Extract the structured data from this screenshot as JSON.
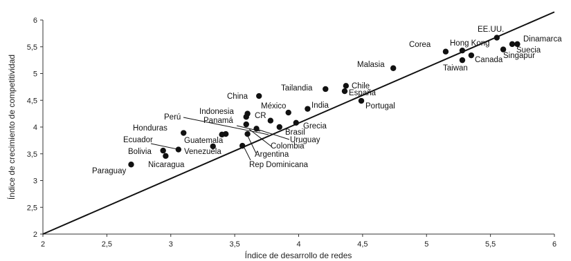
{
  "chart_data": {
    "type": "scatter",
    "title": "",
    "xlabel": "Índice de desarrollo de redes",
    "ylabel": "Índice de crecimiento de competitividad",
    "xlim": [
      2,
      6
    ],
    "ylim": [
      2,
      6
    ],
    "xticks": [
      {
        "value": 2,
        "label": "2"
      },
      {
        "value": 2.5,
        "label": "2,5"
      },
      {
        "value": 3,
        "label": "3"
      },
      {
        "value": 3.5,
        "label": "3,5"
      },
      {
        "value": 4,
        "label": "4"
      },
      {
        "value": 4.5,
        "label": "4,5"
      },
      {
        "value": 5,
        "label": "5"
      },
      {
        "value": 5.5,
        "label": "5,5"
      },
      {
        "value": 6,
        "label": "6"
      }
    ],
    "yticks": [
      {
        "value": 2,
        "label": "2"
      },
      {
        "value": 2.5,
        "label": "2,5"
      },
      {
        "value": 3,
        "label": "3"
      },
      {
        "value": 3.5,
        "label": "3,5"
      },
      {
        "value": 4,
        "label": "4"
      },
      {
        "value": 4.5,
        "label": "4,5"
      },
      {
        "value": 5,
        "label": "5"
      },
      {
        "value": 5.5,
        "label": "5,5"
      },
      {
        "value": 6,
        "label": "6"
      }
    ],
    "grid": false,
    "legend": "none",
    "trendline": {
      "x": [
        2,
        6
      ],
      "y": [
        2,
        6.15
      ]
    },
    "points": [
      {
        "name": "EE.UU.",
        "x": 5.55,
        "y": 5.67
      },
      {
        "name": "Dinamarca",
        "x": 5.71,
        "y": 5.55
      },
      {
        "name": "Suecia",
        "x": 5.67,
        "y": 5.55
      },
      {
        "name": "Singapur",
        "x": 5.6,
        "y": 5.45
      },
      {
        "name": "Hong Kong",
        "x": 5.28,
        "y": 5.43
      },
      {
        "name": "Corea",
        "x": 5.15,
        "y": 5.41
      },
      {
        "name": "Canada",
        "x": 5.35,
        "y": 5.34
      },
      {
        "name": "Taiwan",
        "x": 5.28,
        "y": 5.25
      },
      {
        "name": "Malasia",
        "x": 4.74,
        "y": 5.1
      },
      {
        "name": "Chile",
        "x": 4.37,
        "y": 4.77
      },
      {
        "name": "Tailandia",
        "x": 4.21,
        "y": 4.71
      },
      {
        "name": "España",
        "x": 4.36,
        "y": 4.67
      },
      {
        "name": "China",
        "x": 3.69,
        "y": 4.58
      },
      {
        "name": "Portugal",
        "x": 4.49,
        "y": 4.49
      },
      {
        "name": "India",
        "x": 4.07,
        "y": 4.34
      },
      {
        "name": "México",
        "x": 3.92,
        "y": 4.27
      },
      {
        "name": "Indonesia",
        "x": 3.6,
        "y": 4.25
      },
      {
        "name": "CR",
        "x": 3.59,
        "y": 4.19
      },
      {
        "name": "Panamá",
        "x": 3.59,
        "y": 4.05
      },
      {
        "name": "Brasil",
        "x": 3.78,
        "y": 4.12
      },
      {
        "name": "Grecia",
        "x": 3.98,
        "y": 4.08
      },
      {
        "name": "Perú",
        "x": 3.43,
        "y": 3.87
      },
      {
        "name": "Uruguay",
        "x": 3.85,
        "y": 4.0
      },
      {
        "name": "Colombia",
        "x": 3.67,
        "y": 3.97
      },
      {
        "name": "Argentina",
        "x": 3.6,
        "y": 3.87
      },
      {
        "name": "Honduras",
        "x": 3.1,
        "y": 3.89
      },
      {
        "name": "Guatemala",
        "x": 3.33,
        "y": 3.64
      },
      {
        "name": "Rep Dominicana",
        "x": 3.56,
        "y": 3.65
      },
      {
        "name": "Ecuador",
        "x": 3.06,
        "y": 3.58
      },
      {
        "name": "Venezuela",
        "x": 3.4,
        "y": 3.86
      },
      {
        "name": "Bolivia",
        "x": 2.94,
        "y": 3.56
      },
      {
        "name": "Nicaragua",
        "x": 2.96,
        "y": 3.46
      },
      {
        "name": "Paraguay",
        "x": 2.69,
        "y": 3.3
      }
    ]
  }
}
